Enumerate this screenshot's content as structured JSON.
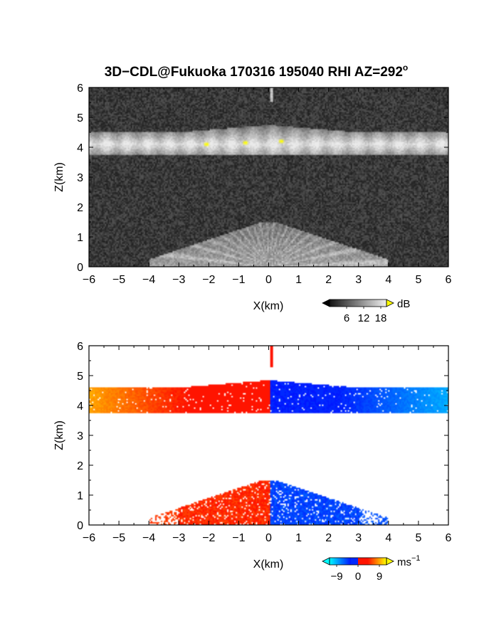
{
  "figure": {
    "title_main": "3D−CDL@Fukuoka 170316 195040 RHI AZ=292",
    "title_sup": "o"
  },
  "chart_data": [
    {
      "type": "heatmap",
      "name": "reflectivity-panel",
      "quantity": "signal intensity",
      "xlabel": "X(km)",
      "ylabel": "Z(km)",
      "xlim": [
        -6,
        6
      ],
      "ylim": [
        0,
        6
      ],
      "xticks": [
        -6,
        -5,
        -4,
        -3,
        -2,
        -1,
        0,
        1,
        2,
        3,
        4,
        5,
        6
      ],
      "yticks": [
        0,
        1,
        2,
        3,
        4,
        5,
        6
      ],
      "xtick_labels": [
        "−6",
        "−5",
        "−4",
        "−3",
        "−2",
        "−1",
        "0",
        "1",
        "2",
        "3",
        "4",
        "5",
        "6"
      ],
      "ytick_labels": [
        "0",
        "1",
        "2",
        "3",
        "4",
        "5",
        "6"
      ],
      "colormap": "grayscale (black to white, yellow over-range)",
      "colorbar": {
        "unit": "dB",
        "tick_labels": [
          "6",
          "12",
          "18"
        ],
        "ticks": [
          6,
          12,
          18
        ],
        "range": [
          0,
          20
        ],
        "over_color": "#ffff00"
      },
      "features": [
        {
          "label": "upper cloud layer",
          "x_range": [
            -6,
            6
          ],
          "z_range": [
            3.75,
            4.5
          ],
          "z_center": 4.1,
          "z_top_max": 4.7
        },
        {
          "label": "lower boundary-layer returns",
          "x_range": [
            -4,
            4
          ],
          "z_range": [
            0,
            1.5
          ]
        },
        {
          "label": "vertical streak",
          "x": 0.1,
          "z_range": [
            5.5,
            6.0
          ]
        },
        {
          "label": "saturated spots",
          "points": [
            [
              -2.1,
              4.1
            ],
            [
              -0.8,
              4.15
            ],
            [
              0.4,
              4.2
            ]
          ]
        }
      ]
    },
    {
      "type": "heatmap",
      "name": "doppler-velocity-panel",
      "quantity": "radial velocity",
      "xlabel": "X(km)",
      "ylabel": "Z(km)",
      "xlim": [
        -6,
        6
      ],
      "ylim": [
        0,
        6
      ],
      "xticks": [
        -6,
        -5,
        -4,
        -3,
        -2,
        -1,
        0,
        1,
        2,
        3,
        4,
        5,
        6
      ],
      "yticks": [
        0,
        1,
        2,
        3,
        4,
        5,
        6
      ],
      "xtick_labels": [
        "−6",
        "−5",
        "−4",
        "−3",
        "−2",
        "−1",
        "0",
        "1",
        "2",
        "3",
        "4",
        "5",
        "6"
      ],
      "ytick_labels": [
        "0",
        "1",
        "2",
        "3",
        "4",
        "5",
        "6"
      ],
      "colormap": "cyan-blue-red-yellow",
      "colorbar": {
        "unit": "ms",
        "unit_sup": "−1",
        "tick_labels": [
          "−9",
          "0",
          "9"
        ],
        "ticks": [
          -9,
          0,
          9
        ],
        "range": [
          -12,
          12
        ]
      },
      "features": [
        {
          "label": "upper cloud layer velocity",
          "x_range": [
            -6,
            6
          ],
          "z_range": [
            3.75,
            4.6
          ],
          "v_at_x_min": 9,
          "v_at_x_max": -9
        },
        {
          "label": "lower layer velocity",
          "x_range": [
            -4,
            4
          ],
          "z_range": [
            0,
            1.5
          ]
        },
        {
          "label": "vertical streak",
          "x": 0.1,
          "z_range": [
            5.3,
            6.0
          ],
          "v": 3
        }
      ]
    }
  ]
}
